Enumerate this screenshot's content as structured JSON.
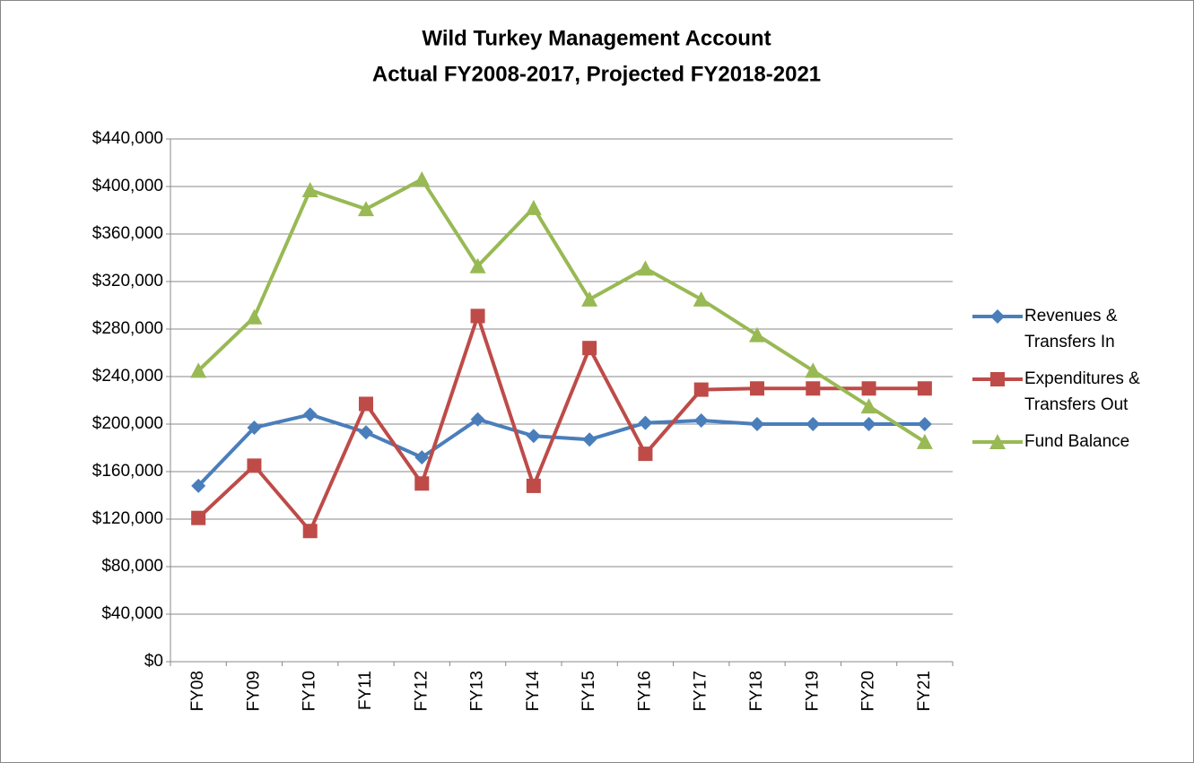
{
  "chart_data": {
    "type": "line",
    "title": "Wild Turkey Management Account",
    "subtitle": "Actual FY2008-2017, Projected FY2018-2021",
    "categories": [
      "FY08",
      "FY09",
      "FY10",
      "FY11",
      "FY12",
      "FY13",
      "FY14",
      "FY15",
      "FY16",
      "FY17",
      "FY18",
      "FY19",
      "FY20",
      "FY21"
    ],
    "series": [
      {
        "name": "Revenues & Transfers In",
        "color": "#4a7ebb",
        "marker": "diamond",
        "values": [
          148000,
          197000,
          208000,
          193000,
          172000,
          204000,
          190000,
          187000,
          201000,
          203000,
          200000,
          200000,
          200000,
          200000
        ]
      },
      {
        "name": "Expenditures & Transfers Out",
        "color": "#be4b48",
        "marker": "square",
        "values": [
          121000,
          165000,
          110000,
          217000,
          150000,
          291000,
          148000,
          264000,
          175000,
          229000,
          230000,
          230000,
          230000,
          230000
        ]
      },
      {
        "name": "Fund Balance",
        "color": "#98b954",
        "marker": "triangle",
        "values": [
          245000,
          290000,
          397000,
          381000,
          406000,
          333000,
          382000,
          305000,
          331000,
          305000,
          275000,
          245000,
          215000,
          185000
        ]
      }
    ],
    "ylim": [
      0,
      440000
    ],
    "yticks": [
      {
        "value": 0,
        "label": "$0"
      },
      {
        "value": 40000,
        "label": "$40,000"
      },
      {
        "value": 80000,
        "label": "$80,000"
      },
      {
        "value": 120000,
        "label": "$120,000"
      },
      {
        "value": 160000,
        "label": "$160,000"
      },
      {
        "value": 200000,
        "label": "$200,000"
      },
      {
        "value": 240000,
        "label": "$240,000"
      },
      {
        "value": 280000,
        "label": "$280,000"
      },
      {
        "value": 320000,
        "label": "$320,000"
      },
      {
        "value": 360000,
        "label": "$360,000"
      },
      {
        "value": 400000,
        "label": "$400,000"
      },
      {
        "value": 440000,
        "label": "$440,000"
      }
    ],
    "grid": true,
    "legend": "right"
  }
}
